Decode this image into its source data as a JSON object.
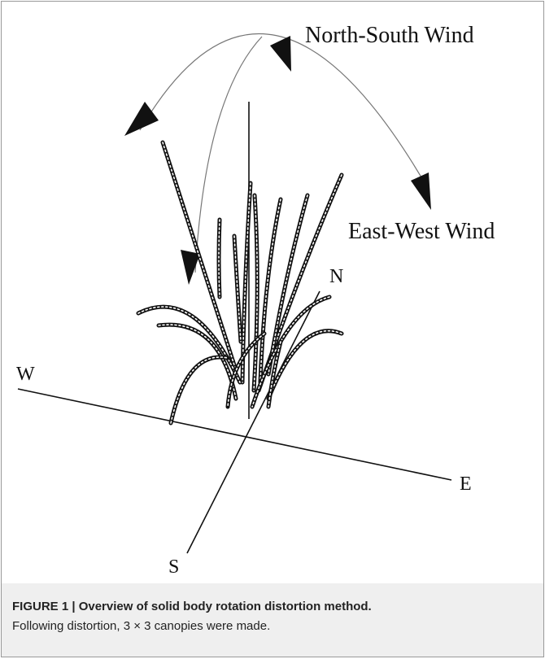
{
  "figure": {
    "labels": {
      "north_south_wind": "North-South Wind",
      "east_west_wind": "East-West Wind",
      "north": "N",
      "west": "W",
      "east": "E",
      "south": "S"
    }
  },
  "caption": {
    "label": "FIGURE 1 | Overview of solid body rotation distortion method.",
    "text": "Following distortion, 3 × 3 canopies were made."
  }
}
